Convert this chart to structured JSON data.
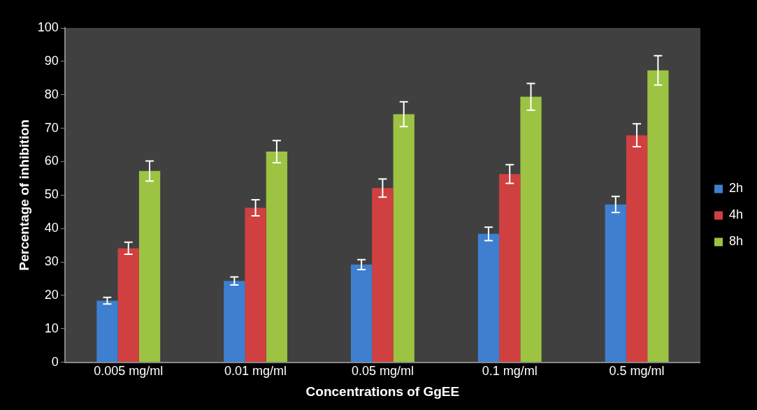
{
  "chart_data": {
    "type": "bar",
    "xlabel": "Concentrations of GgEE",
    "ylabel": "Percentage of inhibition",
    "categories": [
      "0.005 mg/ml",
      "0.01 mg/ml",
      "0.05 mg/ml",
      "0.1 mg/ml",
      "0.5 mg/ml"
    ],
    "series": [
      {
        "name": "2h",
        "color": "#3e7fd0",
        "values": [
          18.4,
          24.3,
          29.2,
          38.4,
          47.2
        ],
        "errors": [
          1,
          1.2,
          1.5,
          2,
          2.4
        ]
      },
      {
        "name": "4h",
        "color": "#d04040",
        "values": [
          34.1,
          46.2,
          52.1,
          56.3,
          67.9
        ],
        "errors": [
          1.8,
          2.4,
          2.7,
          2.8,
          3.4
        ]
      },
      {
        "name": "8h",
        "color": "#9cc342",
        "values": [
          57.2,
          63,
          74.2,
          79.4,
          87.3
        ],
        "errors": [
          3,
          3.3,
          3.7,
          4,
          4.4
        ]
      }
    ],
    "ylim": [
      0,
      100
    ],
    "yticks": [
      0,
      10,
      20,
      30,
      40,
      50,
      60,
      70,
      80,
      90,
      100
    ],
    "grid": false,
    "legend": "right"
  }
}
